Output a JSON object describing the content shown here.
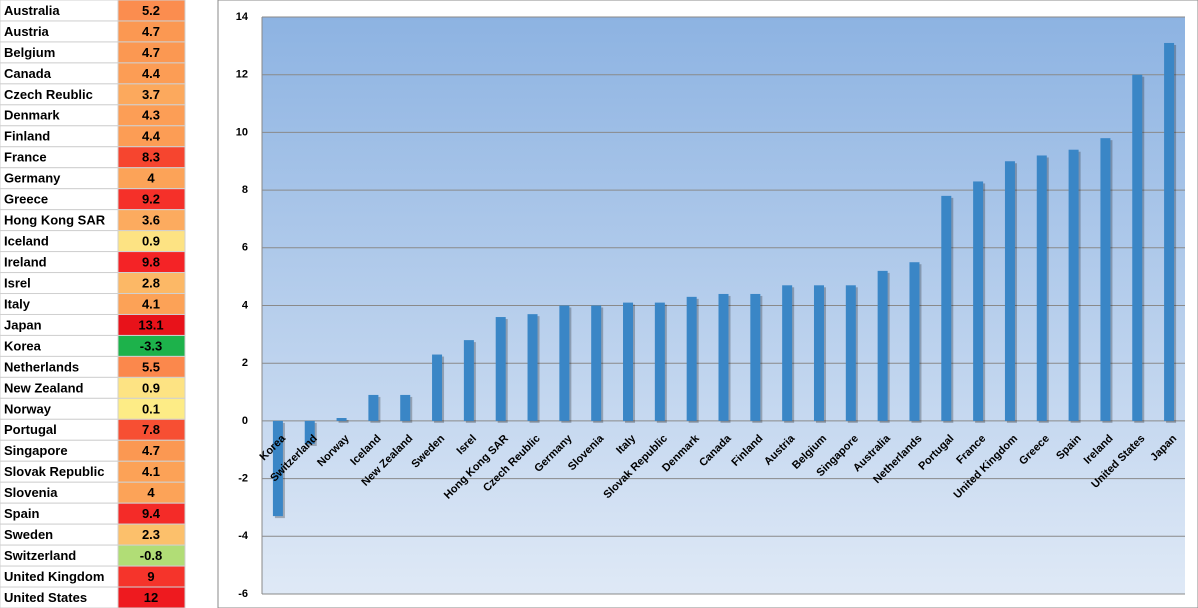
{
  "table": {
    "rows": [
      {
        "name": "Australia",
        "value": 5.2,
        "color": "#fb8d4f"
      },
      {
        "name": "Austria",
        "value": 4.7,
        "color": "#fb9852"
      },
      {
        "name": "Belgium",
        "value": 4.7,
        "color": "#fb9852"
      },
      {
        "name": "Canada",
        "value": 4.4,
        "color": "#fc9d55"
      },
      {
        "name": "Czech Reublic",
        "value": 3.7,
        "color": "#fca95d"
      },
      {
        "name": "Denmark",
        "value": 4.3,
        "color": "#fc9e56"
      },
      {
        "name": "Finland",
        "value": 4.4,
        "color": "#fc9d55"
      },
      {
        "name": "France",
        "value": 8.3,
        "color": "#f6452f"
      },
      {
        "name": "Germany",
        "value": 4,
        "color": "#fca358"
      },
      {
        "name": "Greece",
        "value": 9.2,
        "color": "#f53029"
      },
      {
        "name": "Hong Kong SAR",
        "value": 3.6,
        "color": "#fcab5f"
      },
      {
        "name": "Iceland",
        "value": 0.9,
        "color": "#fde383"
      },
      {
        "name": "Ireland",
        "value": 9.8,
        "color": "#f42326"
      },
      {
        "name": "Isrel",
        "value": 2.8,
        "color": "#fcb866"
      },
      {
        "name": "Italy",
        "value": 4.1,
        "color": "#fca257"
      },
      {
        "name": "Japan",
        "value": 13.1,
        "color": "#e8121a"
      },
      {
        "name": "Korea",
        "value": -3.3,
        "color": "#1db24b"
      },
      {
        "name": "Netherlands",
        "value": 5.5,
        "color": "#fb884c"
      },
      {
        "name": "New Zealand",
        "value": 0.9,
        "color": "#fde383"
      },
      {
        "name": "Norway",
        "value": 0.1,
        "color": "#fdec86"
      },
      {
        "name": "Portugal",
        "value": 7.8,
        "color": "#f74f33"
      },
      {
        "name": "Singapore",
        "value": 4.7,
        "color": "#fb9852"
      },
      {
        "name": "Slovak Republic",
        "value": 4.1,
        "color": "#fca257"
      },
      {
        "name": "Slovenia",
        "value": 4,
        "color": "#fca358"
      },
      {
        "name": "Spain",
        "value": 9.4,
        "color": "#f42b28"
      },
      {
        "name": "Sweden",
        "value": 2.3,
        "color": "#fcc06b"
      },
      {
        "name": "Switzerland",
        "value": -0.8,
        "color": "#b1dd76"
      },
      {
        "name": "United Kingdom",
        "value": 9,
        "color": "#f5342b"
      },
      {
        "name": "United States",
        "value": 12,
        "color": "#ee1a1f"
      }
    ]
  },
  "chart_data": {
    "type": "bar",
    "categories": [
      "Korea",
      "Switzerland",
      "Norway",
      "Iceland",
      "New Zealand",
      "Sweden",
      "Isrel",
      "Hong Kong SAR",
      "Czech Reublic",
      "Germany",
      "Slovenia",
      "Italy",
      "Slovak Republic",
      "Denmark",
      "Canada",
      "Finland",
      "Austria",
      "Belgium",
      "Singapore",
      "Australia",
      "Netherlands",
      "Portugal",
      "France",
      "United Kingdom",
      "Greece",
      "Spain",
      "Ireland",
      "United States",
      "Japan"
    ],
    "values": [
      -3.3,
      -0.8,
      0.1,
      0.9,
      0.9,
      2.3,
      2.8,
      3.6,
      3.7,
      4,
      4,
      4.1,
      4.1,
      4.3,
      4.4,
      4.4,
      4.7,
      4.7,
      4.7,
      5.2,
      5.5,
      7.8,
      8.3,
      9,
      9.2,
      9.4,
      9.8,
      12,
      13.1
    ],
    "color": "#3a86c6",
    "ylim": [
      -6,
      14
    ],
    "yticks": [
      -6,
      -4,
      -2,
      0,
      2,
      4,
      6,
      8,
      10,
      12,
      14
    ],
    "grid": true
  }
}
